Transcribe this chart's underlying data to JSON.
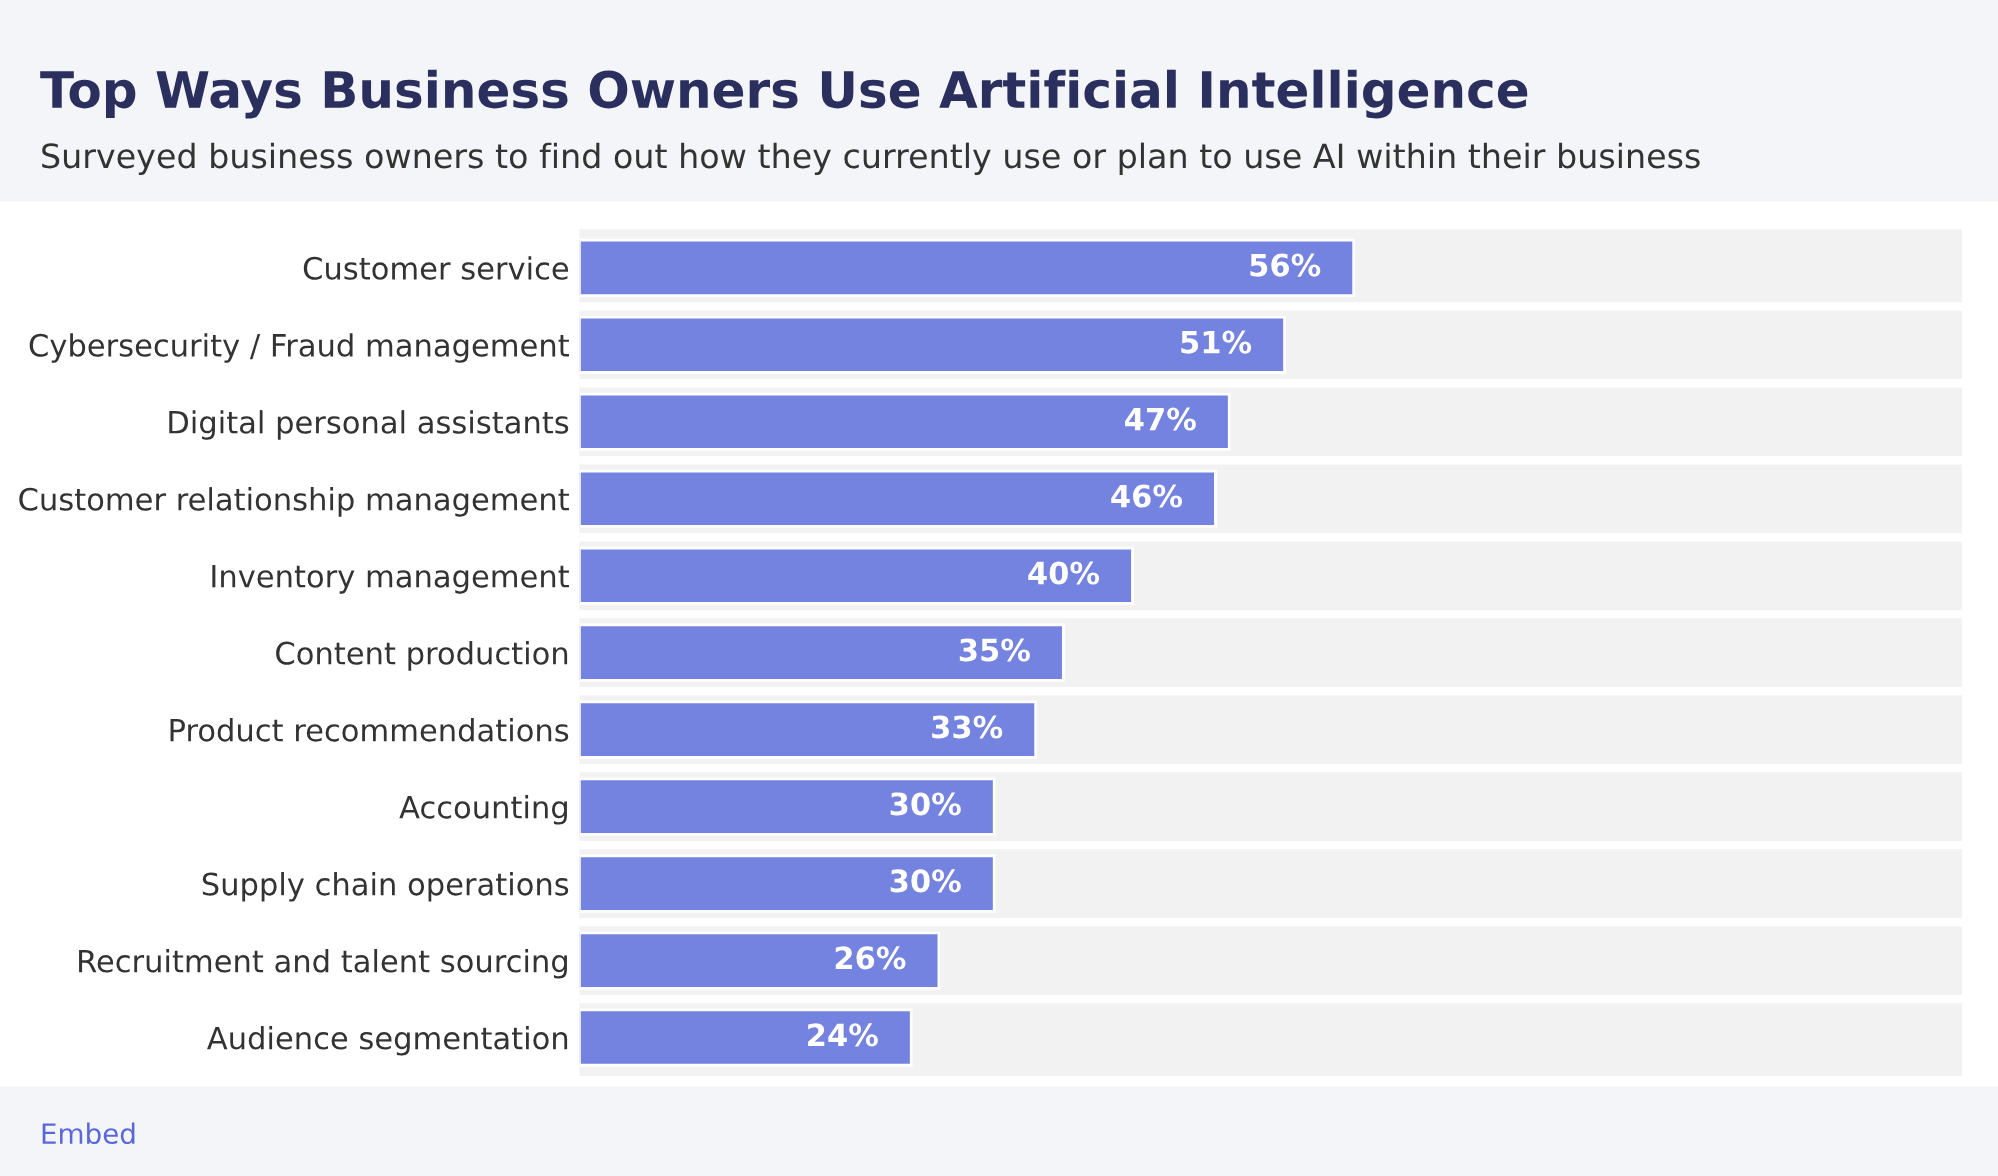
{
  "chart_data": {
    "type": "bar",
    "orientation": "horizontal",
    "title": "Top Ways Business Owners Use Artificial Intelligence",
    "subtitle": "Surveyed business owners to find out how they currently use or plan to use AI within their business",
    "categories": [
      "Customer service",
      "Cybersecurity / Fraud management",
      "Digital personal assistants",
      "Customer relationship management",
      "Inventory management",
      "Content production",
      "Product recommendations",
      "Accounting",
      "Supply chain operations",
      "Recruitment and talent sourcing",
      "Audience segmentation"
    ],
    "values": [
      56,
      51,
      47,
      46,
      40,
      35,
      33,
      30,
      30,
      26,
      24
    ],
    "value_labels": [
      "56%",
      "51%",
      "47%",
      "46%",
      "40%",
      "35%",
      "33%",
      "30%",
      "30%",
      "26%",
      "24%"
    ],
    "color": "#7482e0",
    "xlim": [
      0,
      100
    ],
    "tick_labels": "y",
    "grid": false,
    "legend": false,
    "annotations": [
      "Embed"
    ]
  }
}
